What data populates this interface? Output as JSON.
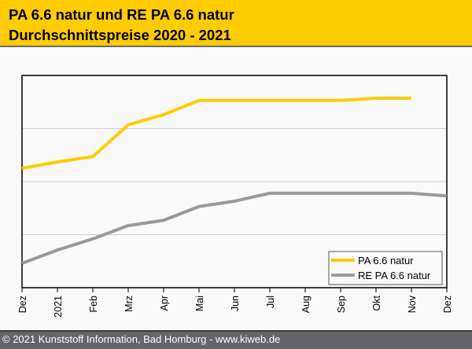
{
  "header": {
    "title_line1": "PA 6.6 natur und RE PA 6.6 natur",
    "title_line2": "Durchschnittspreise 2020 - 2021"
  },
  "footer": {
    "text": "© 2021 Kunststoff Information, Bad Homburg - www.kiweb.de"
  },
  "chart_data": {
    "type": "line",
    "title": "PA 6.6 natur und RE PA 6.6 natur Durchschnittspreise 2020 - 2021",
    "xlabel": "",
    "ylabel": "",
    "categories": [
      "Dez",
      "2021",
      "Feb",
      "Mrz",
      "Apr",
      "Mai",
      "Jun",
      "Jul",
      "Aug",
      "Sep",
      "Okt",
      "Nov",
      "Dez"
    ],
    "ylim": [
      0,
      4
    ],
    "y_units_note": "relative gridline units (no y tick labels shown)",
    "yticks": [
      0,
      1,
      2,
      3,
      4
    ],
    "grid": "horizontal",
    "legend_position": "bottom-right",
    "series": [
      {
        "name": "PA 6.6 natur",
        "color": "#ffcc00",
        "values": [
          2.25,
          2.37,
          2.47,
          3.07,
          3.26,
          3.53,
          3.53,
          3.53,
          3.53,
          3.53,
          3.57,
          3.57,
          null
        ]
      },
      {
        "name": "RE PA 6.6 natur",
        "color": "#999999",
        "values": [
          0.46,
          0.71,
          0.92,
          1.17,
          1.27,
          1.53,
          1.63,
          1.78,
          1.78,
          1.78,
          1.78,
          1.78,
          1.73
        ]
      }
    ]
  }
}
